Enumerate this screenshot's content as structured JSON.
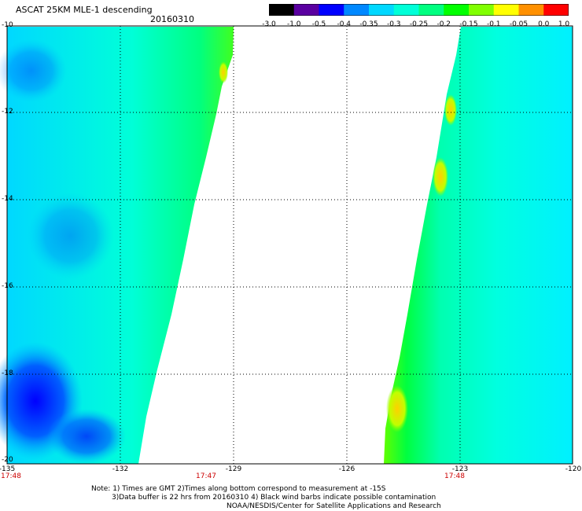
{
  "header": {
    "title": "ASCAT 25KM MLE-1 descending",
    "date": "20160310"
  },
  "colorbar": {
    "labels": [
      "-3.0",
      "-1.0",
      "-0.5",
      "-0.4",
      "-0.35",
      "-0.3",
      "-0.25",
      "-0.2",
      "-0.15",
      "-0.1",
      "-0.05",
      "0.0",
      "1.0"
    ],
    "colors": [
      "#000000",
      "#5a00a0",
      "#0000ff",
      "#0088ff",
      "#00d8ff",
      "#00ffd8",
      "#00ff80",
      "#00ff00",
      "#80ff00",
      "#ffff00",
      "#ff9000",
      "#ff0000"
    ]
  },
  "map": {
    "lat_labels": [
      "-10",
      "-12",
      "-14",
      "-16",
      "-18",
      "-20"
    ],
    "lon_labels": [
      "-135",
      "-132",
      "-129",
      "-126",
      "-123",
      "-120"
    ],
    "time_labels": [
      "17:48",
      "17:47",
      "17:48"
    ]
  },
  "notes": {
    "line1": "Note: 1) Times are GMT 2)Times along bottom correspond to measurement at -15S",
    "line2": "3)Data buffer is 22 hrs from 20160310 4) Black wind barbs indicate possible contamination",
    "line3": "NOAA/NESDIS/Center for Satellite Applications and Research"
  }
}
